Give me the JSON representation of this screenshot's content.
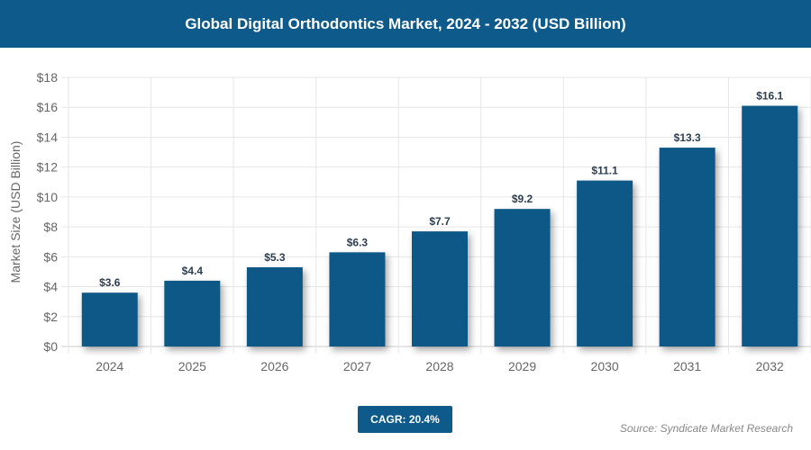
{
  "header": {
    "title": "Global Digital Orthodontics Market, 2024 - 2032 (USD Billion)"
  },
  "chart_data": {
    "type": "bar",
    "title": "Global Digital Orthodontics Market, 2024 - 2032 (USD Billion)",
    "categories": [
      "2024",
      "2025",
      "2026",
      "2027",
      "2028",
      "2029",
      "2030",
      "2031",
      "2032"
    ],
    "values": [
      3.6,
      4.4,
      5.3,
      6.3,
      7.7,
      9.2,
      11.1,
      13.3,
      16.1
    ],
    "data_labels": [
      "$3.6",
      "$4.4",
      "$5.3",
      "$6.3",
      "$7.7",
      "$9.2",
      "$11.1",
      "$13.3",
      "$16.1"
    ],
    "xlabel": "",
    "ylabel": "Market Size (USD Billion)",
    "ylim": [
      0,
      18
    ],
    "yticks": [
      "$0",
      "$2",
      "$4",
      "$6",
      "$8",
      "$10",
      "$12",
      "$14",
      "$16",
      "$18"
    ],
    "grid": true,
    "bar_color": "#0d5887"
  },
  "footer": {
    "cagr": "CAGR: 20.4%",
    "source": "Source: Syndicate Market Research"
  }
}
